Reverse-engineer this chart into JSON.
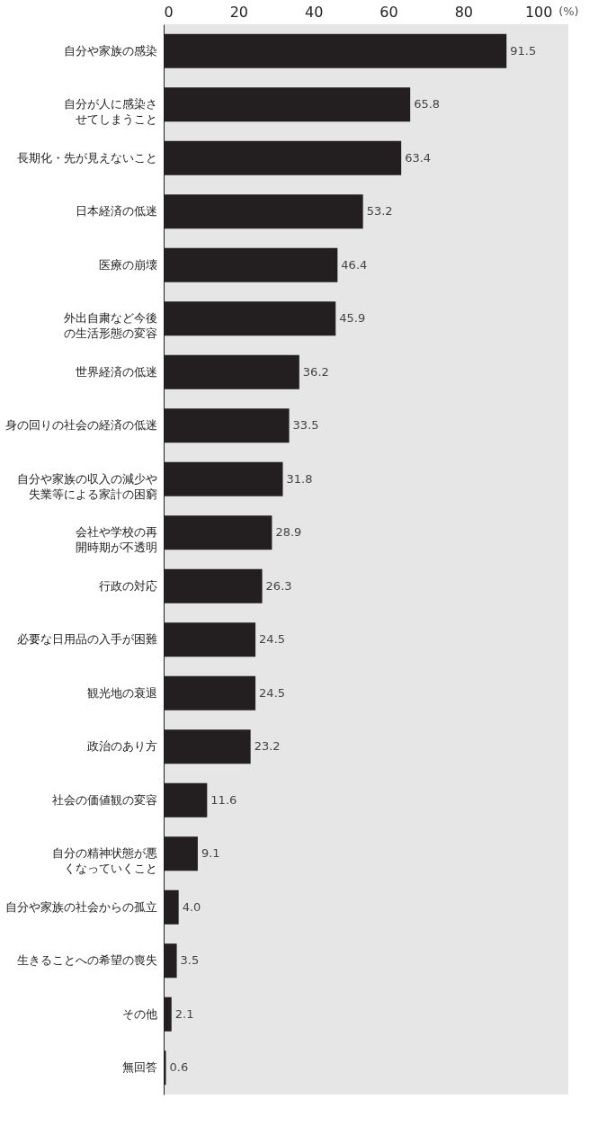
{
  "chart_data": {
    "type": "bar",
    "orientation": "horizontal",
    "xlabel": "(%)",
    "categories": [
      "自分や家族の感染",
      "自分が人に感染させてしまうこと",
      "長期化・先が見えないこと",
      "日本経済の低迷",
      "医療の崩壊",
      "外出自粛など今後の生活形態の変容",
      "世界経済の低迷",
      "身の回りの社会の経済の低迷",
      "自分や家族の収入の減少や失業等による家計の困窮",
      "会社や学校の再開時期が不透明",
      "行政の対応",
      "必要な日用品の入手が困難",
      "観光地の衰退",
      "政治のあり方",
      "社会の価値観の変容",
      "自分の精神状態が悪くなっていくこと",
      "自分や家族の社会からの孤立",
      "生きることへの希望の喪失",
      "その他",
      "無回答"
    ],
    "values": [
      91.5,
      65.8,
      63.4,
      53.2,
      46.4,
      45.9,
      36.2,
      33.5,
      31.8,
      28.9,
      26.3,
      24.5,
      24.5,
      23.2,
      11.6,
      9.1,
      4.0,
      3.5,
      2.1,
      0.6
    ],
    "value_labels": [
      "91.5",
      "65.8",
      "63.4",
      "53.2",
      "46.4",
      "45.9",
      "36.2",
      "33.5",
      "31.8",
      "28.9",
      "26.3",
      "24.5",
      "24.5",
      "23.2",
      "11.6",
      "9.1",
      "4.0",
      "3.5",
      "2.1",
      "0.6"
    ],
    "color": "#231f20",
    "xlim": [
      0,
      108
    ],
    "xticks": [
      0,
      20,
      40,
      60,
      80,
      100
    ]
  }
}
